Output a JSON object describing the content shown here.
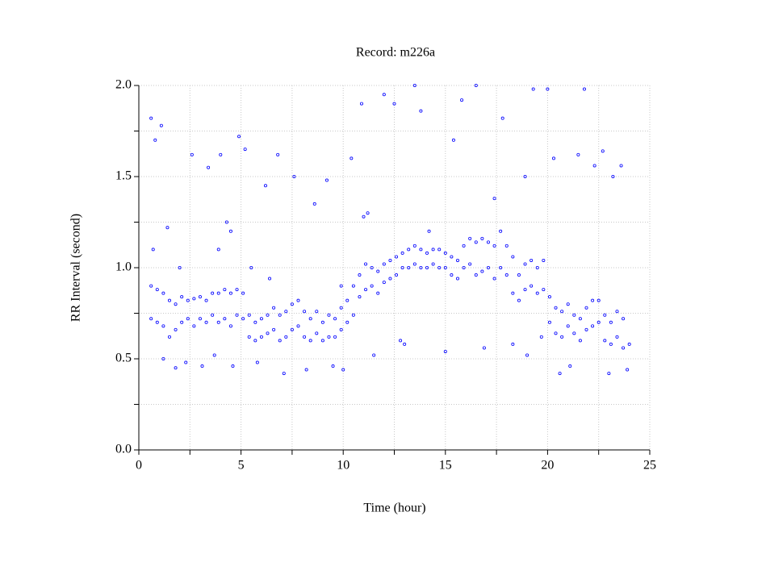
{
  "chart_data": {
    "type": "scatter",
    "title": "Record:  m226a",
    "x_label": "Time (hour)",
    "y_label": "RR Interval (second)",
    "xlim": [
      0,
      25
    ],
    "ylim": [
      0,
      2
    ],
    "xticks": [
      0,
      5,
      10,
      15,
      20,
      25
    ],
    "xminorticks": [
      2.5,
      7.5,
      12.5,
      17.5,
      22.5
    ],
    "yticks": [
      {
        "value": 0,
        "label": "0.0"
      },
      {
        "value": 0.5,
        "label": "0.5"
      },
      {
        "value": 1,
        "label": "1.0"
      },
      {
        "value": 1.5,
        "label": "1.5"
      },
      {
        "value": 2,
        "label": "2.0"
      }
    ],
    "yminorticks": [
      0.25,
      0.75,
      1.25,
      1.75
    ],
    "grid": true,
    "series": [
      {
        "color": "#0000ff",
        "x": [
          0.6,
          0.9,
          1.2,
          1.5,
          1.8,
          2.1,
          2.4,
          2.7,
          3.0,
          3.3,
          3.6,
          3.9,
          4.2,
          4.5,
          4.8,
          5.1,
          5.4,
          5.7,
          6.0,
          6.3,
          6.6,
          6.9,
          7.2,
          7.5,
          7.8,
          8.1,
          8.4,
          8.7,
          9.0,
          9.3,
          9.6,
          9.9,
          10.2,
          10.5,
          10.8,
          11.1,
          11.4,
          11.7,
          12.0,
          12.3,
          12.6,
          12.9,
          13.2,
          13.5,
          13.8,
          14.1,
          14.4,
          14.7,
          15.0,
          15.3,
          15.6,
          15.9,
          16.2,
          16.5,
          16.8,
          17.1,
          17.4,
          17.7,
          18.0,
          18.3,
          18.6,
          18.9,
          19.2,
          19.5,
          19.8,
          20.1,
          20.4,
          20.7,
          21.0,
          21.3,
          21.6,
          21.9,
          22.2,
          22.5,
          22.8,
          23.1,
          23.4,
          23.7,
          0.6,
          0.9,
          1.2,
          1.5,
          1.8,
          2.1,
          2.4,
          2.7,
          3.0,
          3.3,
          3.6,
          3.9,
          4.2,
          4.5,
          4.8,
          5.1,
          5.4,
          5.7,
          6.0,
          6.3,
          6.6,
          6.9,
          7.2,
          7.5,
          7.8,
          8.1,
          8.4,
          8.7,
          9.0,
          9.3,
          9.6,
          9.9,
          10.2,
          10.5,
          10.8,
          11.1,
          11.4,
          11.7,
          12.0,
          12.3,
          12.6,
          12.9,
          13.2,
          13.5,
          13.8,
          14.1,
          14.4,
          14.7,
          15.0,
          15.3,
          15.6,
          15.9,
          16.2,
          16.5,
          16.8,
          17.1,
          17.4,
          17.7,
          18.0,
          18.3,
          18.6,
          18.9,
          19.2,
          19.5,
          19.8,
          20.1,
          20.4,
          20.7,
          21.0,
          21.3,
          21.6,
          21.9,
          22.2,
          22.5,
          22.8,
          23.1,
          23.4,
          23.7,
          0.6,
          0.8,
          1.1,
          1.4,
          1.2,
          1.8,
          2.3,
          2.6,
          3.1,
          3.4,
          3.7,
          4.0,
          4.3,
          4.6,
          4.9,
          5.2,
          5.8,
          6.2,
          6.8,
          7.1,
          7.6,
          8.2,
          8.6,
          9.2,
          9.5,
          10.0,
          10.4,
          10.9,
          11.2,
          11.5,
          12.0,
          12.5,
          13.0,
          13.5,
          13.8,
          14.2,
          15.0,
          15.4,
          15.8,
          16.5,
          16.9,
          17.4,
          17.8,
          18.3,
          18.9,
          19.3,
          19.7,
          20.0,
          20.3,
          20.6,
          21.1,
          21.5,
          21.8,
          22.3,
          22.7,
          23.0,
          23.2,
          23.6,
          23.9,
          24.0,
          0.7,
          2.0,
          3.9,
          4.5,
          5.5,
          6.4,
          9.9,
          11.0,
          12.8,
          19.0
        ],
        "values": [
          0.72,
          0.7,
          0.68,
          0.62,
          0.66,
          0.7,
          0.72,
          0.68,
          0.72,
          0.7,
          0.74,
          0.7,
          0.72,
          0.68,
          0.74,
          0.72,
          0.62,
          0.6,
          0.62,
          0.64,
          0.66,
          0.6,
          0.62,
          0.66,
          0.68,
          0.62,
          0.6,
          0.64,
          0.6,
          0.62,
          0.62,
          0.66,
          0.7,
          0.74,
          0.84,
          0.88,
          0.9,
          0.86,
          0.92,
          0.94,
          0.96,
          1.0,
          1.0,
          1.02,
          1.0,
          1.0,
          1.02,
          1.0,
          1.0,
          0.96,
          0.94,
          1.0,
          1.02,
          0.96,
          0.98,
          1.0,
          0.94,
          1.0,
          0.96,
          0.86,
          0.82,
          0.88,
          0.9,
          0.86,
          0.88,
          0.7,
          0.64,
          0.62,
          0.68,
          0.64,
          0.6,
          0.66,
          0.68,
          0.7,
          0.6,
          0.58,
          0.62,
          0.56,
          0.9,
          0.88,
          0.86,
          0.82,
          0.8,
          0.84,
          0.82,
          0.83,
          0.84,
          0.82,
          0.86,
          0.86,
          0.88,
          0.86,
          0.88,
          0.86,
          0.74,
          0.7,
          0.72,
          0.74,
          0.78,
          0.74,
          0.76,
          0.8,
          0.82,
          0.76,
          0.72,
          0.76,
          0.7,
          0.74,
          0.72,
          0.78,
          0.82,
          0.9,
          0.96,
          1.02,
          1.0,
          0.98,
          1.02,
          1.04,
          1.06,
          1.08,
          1.1,
          1.12,
          1.1,
          1.08,
          1.1,
          1.1,
          1.08,
          1.06,
          1.04,
          1.12,
          1.16,
          1.14,
          1.16,
          1.14,
          1.12,
          1.2,
          1.12,
          1.06,
          0.96,
          1.02,
          1.04,
          1.0,
          1.04,
          0.84,
          0.78,
          0.76,
          0.8,
          0.74,
          0.72,
          0.78,
          0.82,
          0.82,
          0.74,
          0.7,
          0.76,
          0.72,
          1.82,
          1.7,
          1.78,
          1.22,
          0.5,
          0.45,
          0.48,
          1.62,
          0.46,
          1.55,
          0.52,
          1.62,
          1.25,
          0.46,
          1.72,
          1.65,
          0.48,
          1.45,
          1.62,
          0.42,
          1.5,
          0.44,
          1.35,
          1.48,
          0.46,
          0.44,
          1.6,
          1.9,
          1.3,
          0.52,
          1.95,
          1.9,
          0.58,
          2.0,
          1.86,
          1.2,
          0.54,
          1.7,
          1.92,
          2.0,
          0.56,
          1.38,
          1.82,
          0.58,
          1.5,
          1.98,
          0.62,
          1.98,
          1.6,
          0.42,
          0.46,
          1.62,
          1.98,
          1.56,
          1.64,
          0.42,
          1.5,
          1.56,
          0.44,
          0.58,
          1.1,
          1.0,
          1.1,
          1.2,
          1.0,
          0.94,
          0.9,
          1.28,
          0.6,
          0.52
        ]
      }
    ]
  }
}
